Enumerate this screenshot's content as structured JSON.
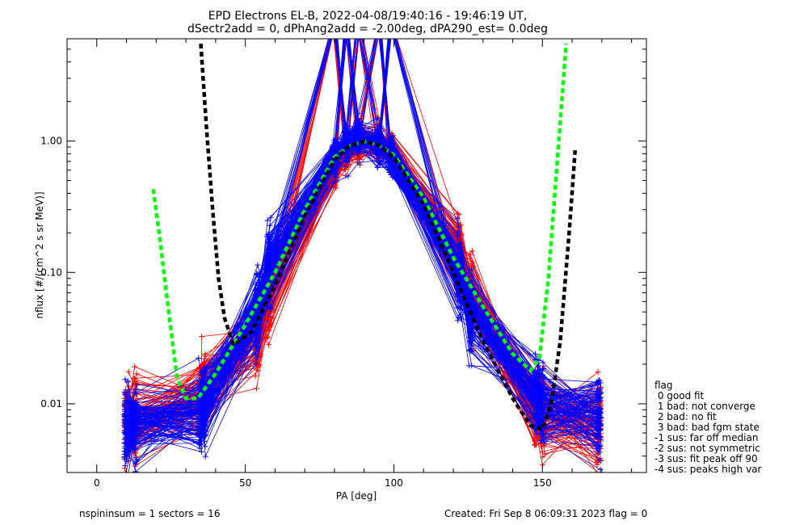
{
  "header": {
    "title_line1": "EPD Electrons EL-B, 2022-04-08/19:40:16 - 19:46:19 UT,",
    "title_line2": "dSectr2add = 0, dPhAng2add = -2.00deg, dPA290_est=   0.0deg"
  },
  "footer": {
    "left": "nspininsum =  1  sectors = 16",
    "right": "Created: Fri Sep  8 06:09:31 2023   flag = 0"
  },
  "legend": {
    "title": "flag",
    "items": [
      " 0 good fit",
      " 1 bad: not converge",
      " 2 bad: no fit",
      " 3 bad: bad fgm state",
      "-1 sus: far off median",
      "-2 sus: not symmetric",
      "-3 sus: fit peak off 90",
      "-4 sus: peaks high var"
    ]
  },
  "colors": {
    "red": "#ff0000",
    "blue": "#0000ff",
    "green_fit": "#00ff00",
    "black_fit": "#000000",
    "axis": "#000000"
  },
  "chart_data": {
    "type": "line",
    "xlabel": "PA [deg]",
    "ylabel": "nflux [#/(cm^2 s sr MeV)]",
    "xlim": [
      -10,
      185
    ],
    "ylim": [
      0.003,
      6.0
    ],
    "ylog": true,
    "xticks": [
      {
        "value": 0,
        "label": "0"
      },
      {
        "value": 50,
        "label": "50"
      },
      {
        "value": 100,
        "label": "100"
      },
      {
        "value": 150,
        "label": "150"
      }
    ],
    "yticks": [
      {
        "value": 0.01,
        "label": "0.01"
      },
      {
        "value": 0.1,
        "label": "0.10"
      },
      {
        "value": 1.0,
        "label": "1.00"
      }
    ],
    "x_minor_step": 10,
    "pa_bins": [
      10,
      13,
      35,
      36,
      54,
      58,
      80,
      84,
      88,
      95,
      99,
      122,
      126,
      148,
      150,
      169
    ],
    "template_red": [
      0.008,
      0.008,
      0.011,
      0.013,
      0.035,
      0.07,
      0.6,
      0.8,
      1.0,
      0.95,
      0.85,
      0.13,
      0.07,
      0.009,
      0.008,
      0.007
    ],
    "template_blue": [
      0.0065,
      0.007,
      0.009,
      0.011,
      0.05,
      0.11,
      0.75,
      0.95,
      1.05,
      0.95,
      0.8,
      0.1,
      0.05,
      0.012,
      0.01,
      0.008
    ],
    "n_red_curves": 95,
    "n_blue_curves": 110,
    "series": [
      {
        "color": "green",
        "style": "dashed",
        "x": [
          19,
          21,
          24,
          27,
          30,
          34,
          40,
          50,
          60,
          70,
          80,
          85,
          90,
          95,
          100,
          110,
          120,
          130,
          140,
          146,
          149,
          152,
          155,
          158
        ],
        "y": [
          0.43,
          0.2,
          0.055,
          0.016,
          0.011,
          0.011,
          0.017,
          0.04,
          0.1,
          0.3,
          0.75,
          0.92,
          0.99,
          0.93,
          0.78,
          0.37,
          0.13,
          0.055,
          0.024,
          0.018,
          0.022,
          0.09,
          0.7,
          5.5
        ]
      },
      {
        "color": "black",
        "style": "dashed",
        "x": [
          35,
          37,
          39,
          41,
          43,
          46,
          52,
          60,
          70,
          80,
          85,
          90,
          95,
          100,
          110,
          120,
          130,
          140,
          146,
          150,
          153,
          156,
          159,
          161
        ],
        "y": [
          5.5,
          1.2,
          0.3,
          0.09,
          0.045,
          0.028,
          0.035,
          0.08,
          0.27,
          0.72,
          0.92,
          0.99,
          0.93,
          0.75,
          0.33,
          0.1,
          0.03,
          0.011,
          0.0068,
          0.0064,
          0.01,
          0.03,
          0.2,
          0.85
        ]
      }
    ]
  }
}
